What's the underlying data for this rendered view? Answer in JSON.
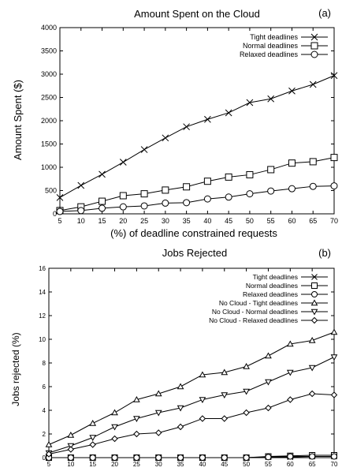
{
  "chart_data": [
    {
      "type": "line",
      "panel": "(a)",
      "title": "Amount Spent on the Cloud",
      "xlabel": "(%) of deadline constrained requests",
      "ylabel": "Amount Spent ($)",
      "x": [
        5,
        10,
        15,
        20,
        25,
        30,
        35,
        40,
        45,
        50,
        55,
        60,
        65,
        70
      ],
      "x_ticks": [
        "5",
        "10",
        "15",
        "20",
        "25",
        "30",
        "35",
        "40",
        "45",
        "50",
        "55",
        "60",
        "65",
        "70"
      ],
      "xlim": [
        5,
        70
      ],
      "ylim": [
        0,
        4000
      ],
      "y_ticks": [
        "0",
        "500",
        "1000",
        "1500",
        "2000",
        "2500",
        "3000",
        "3500",
        "4000"
      ],
      "legend_position": "top-right",
      "series": [
        {
          "name": "Tight deadlines",
          "marker": "x",
          "values": [
            350,
            610,
            850,
            1110,
            1380,
            1630,
            1870,
            2030,
            2170,
            2390,
            2470,
            2640,
            2780,
            2970
          ]
        },
        {
          "name": "Normal deadlines",
          "marker": "square",
          "values": [
            70,
            150,
            270,
            390,
            430,
            510,
            580,
            700,
            790,
            840,
            950,
            1090,
            1120,
            1210
          ]
        },
        {
          "name": "Relaxed deadlines",
          "marker": "circle",
          "values": [
            50,
            70,
            120,
            150,
            170,
            230,
            240,
            320,
            360,
            430,
            490,
            540,
            590,
            600
          ]
        }
      ]
    },
    {
      "type": "line",
      "panel": "(b)",
      "title": "Jobs Rejected",
      "xlabel": "",
      "ylabel": "Jobs rejected (%)",
      "x": [
        5,
        10,
        15,
        20,
        25,
        30,
        35,
        40,
        45,
        50,
        55,
        60,
        65,
        70
      ],
      "x_ticks": [
        "5",
        "10",
        "15",
        "20",
        "25",
        "30",
        "35",
        "40",
        "45",
        "50",
        "55",
        "60",
        "65",
        "70"
      ],
      "xlim": [
        5,
        70
      ],
      "ylim": [
        0,
        16
      ],
      "y_ticks": [
        "0",
        "2",
        "4",
        "6",
        "8",
        "10",
        "12",
        "14",
        "16"
      ],
      "legend_position": "top-right",
      "series": [
        {
          "name": "Tight deadlines",
          "marker": "x",
          "values": [
            0,
            0,
            0,
            0,
            0,
            0,
            0,
            0,
            0,
            0,
            0.05,
            0.05,
            0.1,
            0.1
          ]
        },
        {
          "name": "Normal deadlines",
          "marker": "square",
          "values": [
            0,
            0,
            0,
            0,
            0,
            0,
            0,
            0,
            0,
            0,
            0.1,
            0.15,
            0.2,
            0.2
          ]
        },
        {
          "name": "Relaxed deadlines",
          "marker": "circle",
          "values": [
            0,
            0,
            0,
            0,
            0,
            0,
            0,
            0,
            0,
            0,
            0.05,
            0.1,
            0.1,
            0.1
          ]
        },
        {
          "name": "No Cloud - Tight deadlines",
          "marker": "triangle-up",
          "values": [
            1.1,
            1.9,
            2.9,
            3.8,
            4.9,
            5.4,
            6.0,
            7.0,
            7.2,
            7.7,
            8.6,
            9.6,
            9.9,
            10.6
          ]
        },
        {
          "name": "No Cloud - Normal deadlines",
          "marker": "triangle-down",
          "values": [
            0.4,
            1.0,
            1.7,
            2.6,
            3.3,
            3.8,
            4.2,
            4.9,
            5.3,
            5.6,
            6.4,
            7.2,
            7.6,
            8.5
          ]
        },
        {
          "name": "No Cloud - Relaxed deadlines",
          "marker": "diamond",
          "values": [
            0.3,
            0.7,
            1.1,
            1.6,
            2.0,
            2.1,
            2.6,
            3.3,
            3.3,
            3.8,
            4.2,
            4.9,
            5.4,
            5.3
          ]
        }
      ]
    }
  ]
}
